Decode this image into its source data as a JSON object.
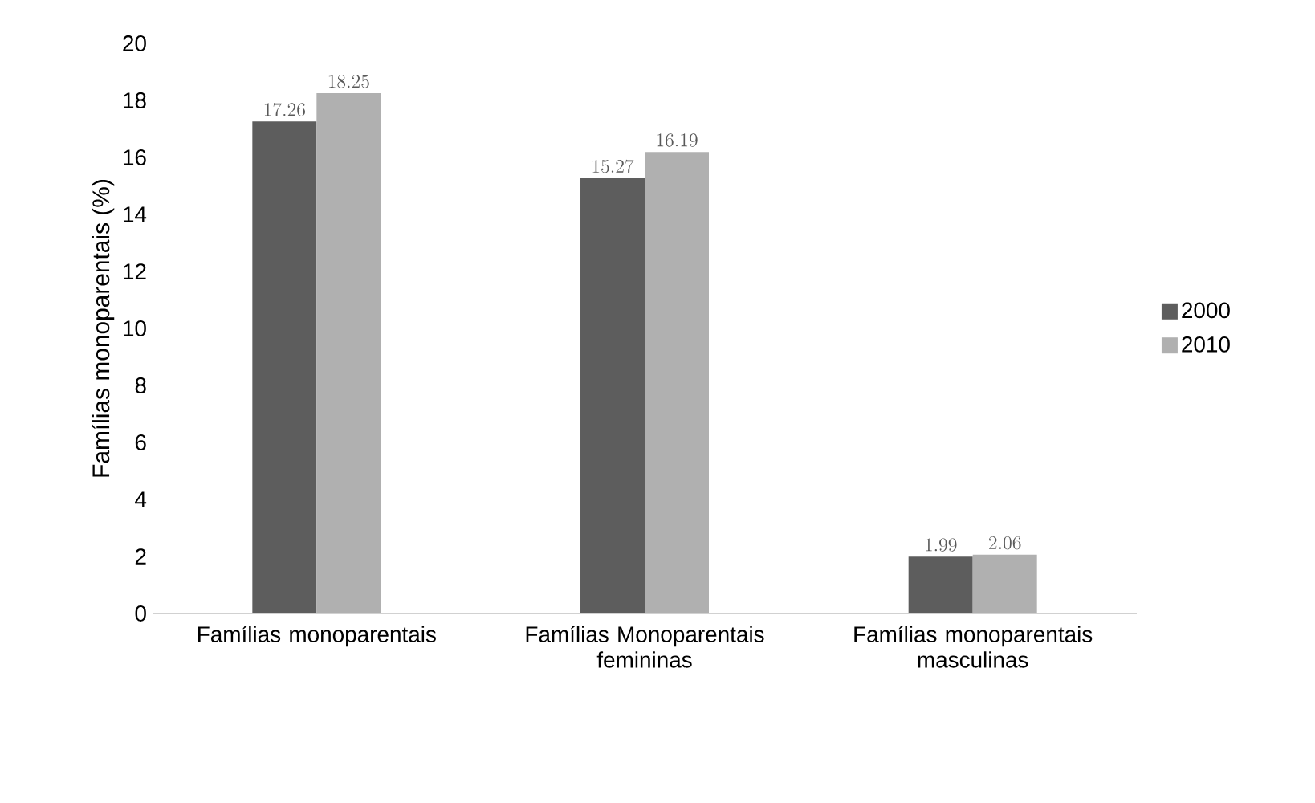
{
  "chart_data": {
    "type": "bar",
    "ylabel": "Famílias monoparentais (%)",
    "categories": [
      "Famílias monoparentais",
      "Famílias Monoparentais femininas",
      "Famílias monoparentais masculinas"
    ],
    "series": [
      {
        "name": "2000",
        "color": "#5d5d5d",
        "values": [
          17.26,
          15.27,
          1.99
        ]
      },
      {
        "name": "2010",
        "color": "#b0b0b0",
        "values": [
          18.25,
          16.19,
          2.06
        ]
      }
    ],
    "ylim": [
      0,
      20
    ],
    "yticks": [
      0,
      2,
      4,
      6,
      8,
      10,
      12,
      14,
      16,
      18,
      20
    ],
    "data_labels": true,
    "legend": "right",
    "grid": false
  }
}
